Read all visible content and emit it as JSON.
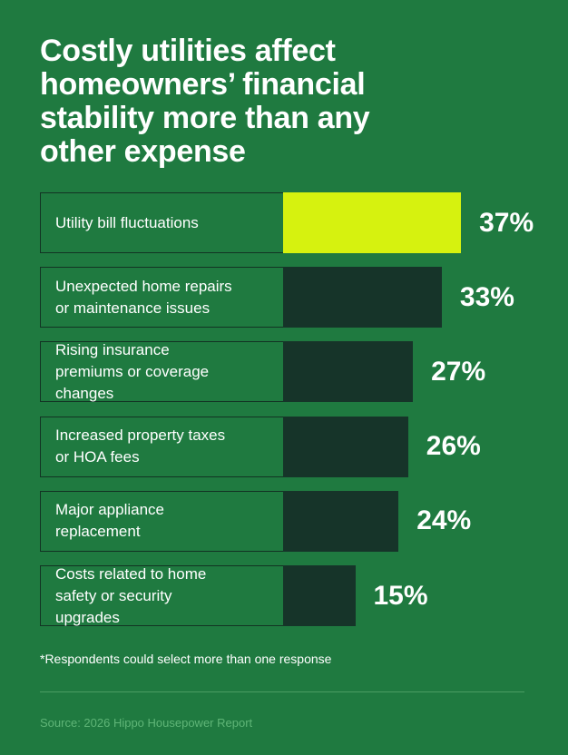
{
  "chart_data": {
    "type": "bar",
    "title": "Costly utilities affect homeowners’ financial stability more than any other expense",
    "categories": [
      "Utility bill fluctuations",
      "Unexpected home repairs or maintenance issues",
      "Rising insurance premiums or coverage changes",
      "Increased property taxes or HOA fees",
      "Major appliance replacement",
      "Costs related to home safety or security upgrades"
    ],
    "values": [
      37,
      33,
      27,
      26,
      24,
      15
    ],
    "value_labels": [
      "37%",
      "33%",
      "27%",
      "26%",
      "24%",
      "15%"
    ],
    "colors": [
      "#d6f20f",
      "#163429",
      "#163429",
      "#163429",
      "#163429",
      "#163429"
    ],
    "note": "*Respondents could select more than one response",
    "source": "Source: 2026 Hippo Housepower Report"
  }
}
